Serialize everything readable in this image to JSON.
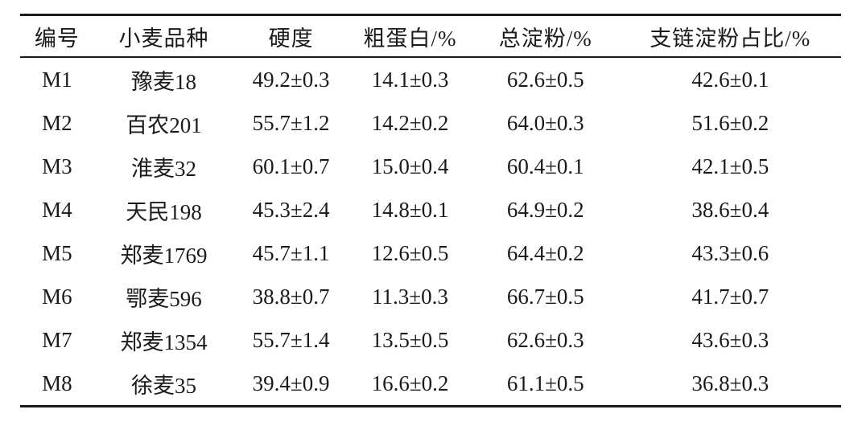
{
  "chart_data": {
    "type": "table",
    "columns": [
      "编号",
      "小麦品种",
      "硬度",
      "粗蛋白/%",
      "总淀粉/%",
      "支链淀粉占比/%"
    ],
    "rows": [
      [
        "M1",
        "豫麦18",
        "49.2±0.3",
        "14.1±0.3",
        "62.6±0.5",
        "42.6±0.1"
      ],
      [
        "M2",
        "百农201",
        "55.7±1.2",
        "14.2±0.2",
        "64.0±0.3",
        "51.6±0.2"
      ],
      [
        "M3",
        "淮麦32",
        "60.1±0.7",
        "15.0±0.4",
        "60.4±0.1",
        "42.1±0.5"
      ],
      [
        "M4",
        "天民198",
        "45.3±2.4",
        "14.8±0.1",
        "64.9±0.2",
        "38.6±0.4"
      ],
      [
        "M5",
        "郑麦1769",
        "45.7±1.1",
        "12.6±0.5",
        "64.4±0.2",
        "43.3±0.6"
      ],
      [
        "M6",
        "鄂麦596",
        "38.8±0.7",
        "11.3±0.3",
        "66.7±0.5",
        "41.7±0.7"
      ],
      [
        "M7",
        "郑麦1354",
        "55.7±1.4",
        "13.5±0.5",
        "62.6±0.3",
        "43.6±0.3"
      ],
      [
        "M8",
        "徐麦35",
        "39.4±0.9",
        "16.6±0.2",
        "61.1±0.5",
        "36.8±0.3"
      ]
    ]
  },
  "colors": {
    "background": "#ffffff",
    "text": "#1a1a1a",
    "rule": "#1a1a1a"
  }
}
